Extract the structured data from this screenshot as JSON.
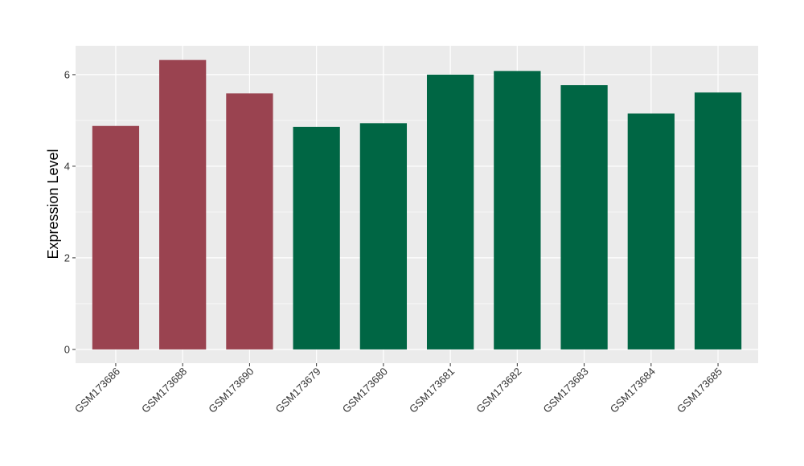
{
  "chart_data": {
    "type": "bar",
    "title": "",
    "xlabel": "",
    "ylabel": "Expression Level",
    "ylim": [
      -0.3,
      6.63
    ],
    "yticks": [
      0,
      2,
      4,
      6
    ],
    "grid": true,
    "legend": "none",
    "categories": [
      "GSM173686",
      "GSM173688",
      "GSM173690",
      "GSM173679",
      "GSM173680",
      "GSM173681",
      "GSM173682",
      "GSM173683",
      "GSM173684",
      "GSM173685"
    ],
    "values": [
      4.88,
      6.32,
      5.59,
      4.86,
      4.94,
      6.0,
      6.08,
      5.77,
      5.15,
      5.61
    ],
    "groups": [
      "red",
      "red",
      "red",
      "green",
      "green",
      "green",
      "green",
      "green",
      "green",
      "green"
    ],
    "colors": {
      "red": "#9a4350",
      "green": "#006644"
    },
    "panel_background": "#ebebeb",
    "grid_color": "#ffffff"
  }
}
